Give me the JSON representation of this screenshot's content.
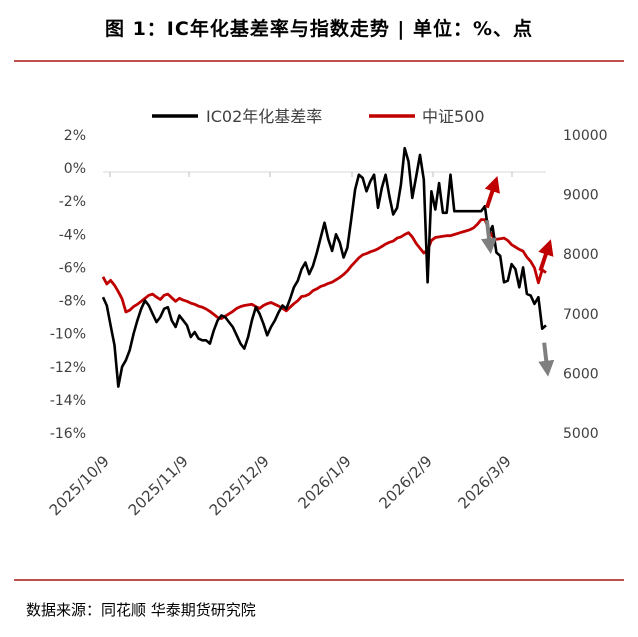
{
  "title": "图 1：IC年化基差率与指数走势 | 单位：%、点",
  "source": "数据来源：同花顺 华泰期货研究院",
  "chart_data": {
    "type": "line",
    "grid": false,
    "legend_position": "top-center",
    "x_labels": [
      "2025/10/9",
      "2025/11/9",
      "2025/12/9",
      "2026/1/9",
      "2026/2/9",
      "2026/3/9"
    ],
    "left_axis": {
      "min": -16,
      "max": 2,
      "step": 2,
      "tick_labels": [
        "2%",
        "0%",
        "-2%",
        "-4%",
        "-6%",
        "-8%",
        "-10%",
        "-12%",
        "-14%",
        "-16%"
      ]
    },
    "right_axis": {
      "min": 5000,
      "max": 10000,
      "step": 1000,
      "tick_labels": [
        "10000",
        "9000",
        "8000",
        "7000",
        "6000",
        "5000"
      ]
    },
    "colors": {
      "basis": "#000000",
      "index": "#c00000",
      "arrow_up": "#c00000",
      "arrow_down": "#7f7f7f"
    },
    "series": [
      {
        "name": "IC02年化基差率",
        "axis": "left",
        "values": [
          -7.8,
          -8.3,
          -9.5,
          -10.7,
          -13.2,
          -12.0,
          -11.6,
          -11.0,
          -10.0,
          -9.2,
          -8.5,
          -8.0,
          -8.3,
          -8.8,
          -9.3,
          -9.0,
          -8.5,
          -8.4,
          -9.2,
          -9.6,
          -8.9,
          -9.2,
          -9.5,
          -10.2,
          -9.9,
          -10.3,
          -10.4,
          -10.4,
          -10.6,
          -9.8,
          -9.2,
          -8.9,
          -9.0,
          -9.3,
          -9.6,
          -10.1,
          -10.6,
          -10.9,
          -10.2,
          -9.2,
          -8.4,
          -8.8,
          -9.4,
          -10.1,
          -9.6,
          -9.2,
          -8.7,
          -8.3,
          -8.5,
          -7.9,
          -7.2,
          -6.8,
          -6.1,
          -5.7,
          -6.4,
          -5.9,
          -5.1,
          -4.2,
          -3.3,
          -4.3,
          -5.0,
          -4.0,
          -4.5,
          -5.4,
          -4.8,
          -3.1,
          -1.3,
          -0.4,
          -0.6,
          -1.4,
          -0.8,
          -0.4,
          -2.4,
          -1.2,
          -0.4,
          -1.7,
          -2.8,
          -2.4,
          -1.0,
          1.2,
          0.4,
          -1.8,
          -0.5,
          0.8,
          -0.7,
          -6.9,
          -1.4,
          -2.5,
          -0.9,
          -2.7,
          -2.7,
          -0.4,
          -2.6,
          -2.6,
          -2.6,
          -2.6,
          -2.6,
          -2.6,
          -2.6,
          -2.6,
          -2.3,
          -4.0,
          -3.5,
          -5.1,
          -5.3,
          -6.9,
          -6.8,
          -5.8,
          -6.1,
          -7.2,
          -6.0,
          -7.6,
          -7.7,
          -8.2,
          -7.8,
          -9.7,
          -9.5
        ]
      },
      {
        "name": "中证500",
        "axis": "right",
        "values": [
          7620,
          7500,
          7560,
          7480,
          7370,
          7250,
          7030,
          7060,
          7120,
          7160,
          7210,
          7260,
          7310,
          7330,
          7280,
          7240,
          7310,
          7330,
          7270,
          7210,
          7260,
          7230,
          7210,
          7180,
          7160,
          7130,
          7110,
          7080,
          7040,
          6990,
          6940,
          6920,
          6960,
          7000,
          7040,
          7090,
          7120,
          7140,
          7150,
          7160,
          7120,
          7090,
          7140,
          7170,
          7190,
          7160,
          7130,
          7090,
          7050,
          7110,
          7170,
          7220,
          7290,
          7300,
          7330,
          7390,
          7420,
          7460,
          7480,
          7510,
          7530,
          7570,
          7610,
          7660,
          7720,
          7800,
          7870,
          7940,
          7990,
          8010,
          8040,
          8060,
          8090,
          8130,
          8170,
          8200,
          8220,
          8270,
          8290,
          8330,
          8360,
          8290,
          8180,
          8100,
          8020,
          8070,
          8230,
          8280,
          8290,
          8300,
          8310,
          8310,
          8330,
          8350,
          8370,
          8390,
          8410,
          8440,
          8500,
          8580,
          8580,
          8420,
          8300,
          8250,
          8260,
          8270,
          8230,
          8160,
          8120,
          8080,
          8050,
          7950,
          7880,
          7770,
          7520,
          7740,
          7690
        ]
      }
    ],
    "arrows": [
      {
        "direction": "up",
        "series": "中证500",
        "at_index": 100,
        "color_key": "arrow_up"
      },
      {
        "direction": "down",
        "series": "IC02年化基差率",
        "at_index": 100,
        "color_key": "arrow_down"
      },
      {
        "direction": "up",
        "series": "中证500",
        "at_index": 114,
        "color_key": "arrow_up"
      },
      {
        "direction": "down",
        "series": "IC02年化基差率",
        "at_index": 115,
        "color_key": "arrow_down"
      }
    ]
  }
}
